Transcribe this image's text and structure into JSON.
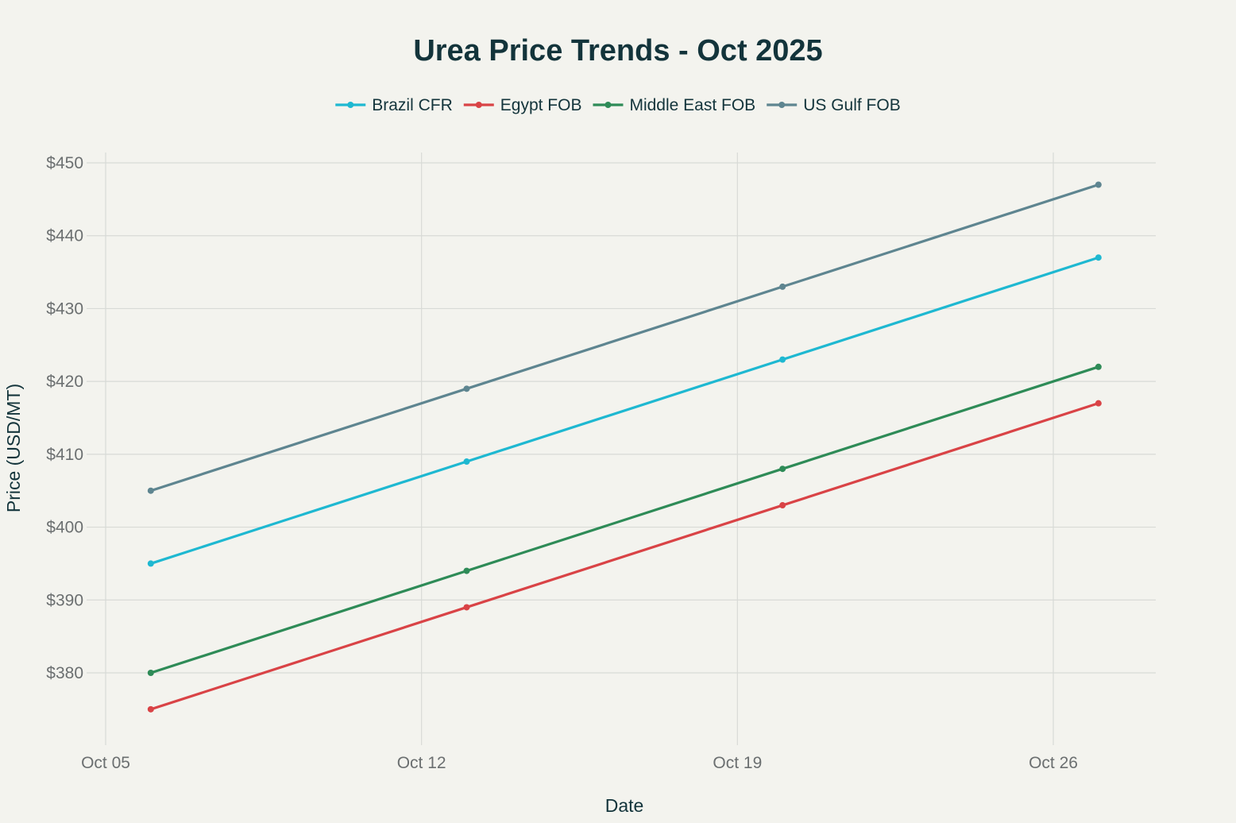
{
  "chart_data": {
    "type": "line",
    "title": "Urea Price Trends - Oct 2025",
    "xlabel": "Date",
    "ylabel": "Price (USD/MT)",
    "x": [
      "2025-10-06",
      "2025-10-13",
      "2025-10-20",
      "2025-10-27"
    ],
    "x_ticks": [
      {
        "value": "2025-10-05",
        "label": "Oct 05"
      },
      {
        "value": "2025-10-12",
        "label": "Oct 12"
      },
      {
        "value": "2025-10-19",
        "label": "Oct 19"
      },
      {
        "value": "2025-10-26",
        "label": "Oct 26"
      }
    ],
    "xlim": [
      "2025-10-05",
      "2025-10-28"
    ],
    "y_ticks": [
      {
        "value": 380,
        "label": "$380"
      },
      {
        "value": 390,
        "label": "$390"
      },
      {
        "value": 400,
        "label": "$400"
      },
      {
        "value": 410,
        "label": "$410"
      },
      {
        "value": 420,
        "label": "$420"
      },
      {
        "value": 430,
        "label": "$430"
      },
      {
        "value": 440,
        "label": "$440"
      },
      {
        "value": 450,
        "label": "$450"
      }
    ],
    "ylim": [
      370,
      450
    ],
    "grid": true,
    "legend": "top-center",
    "series": [
      {
        "name": "Brazil CFR",
        "color": "#1eb8d1",
        "values": [
          395,
          409,
          423,
          437
        ]
      },
      {
        "name": "Egypt FOB",
        "color": "#d94346",
        "values": [
          375,
          389,
          403,
          417
        ]
      },
      {
        "name": "Middle East FOB",
        "color": "#2e8b57",
        "values": [
          380,
          394,
          408,
          422
        ]
      },
      {
        "name": "US Gulf FOB",
        "color": "#5e8590",
        "values": [
          405,
          419,
          433,
          447
        ]
      }
    ]
  },
  "colors": {
    "background": "#f3f3ee",
    "title": "#13343b",
    "tick_label": "#6b6f70",
    "axis_title": "#13343b",
    "grid": "#d8dad6"
  }
}
